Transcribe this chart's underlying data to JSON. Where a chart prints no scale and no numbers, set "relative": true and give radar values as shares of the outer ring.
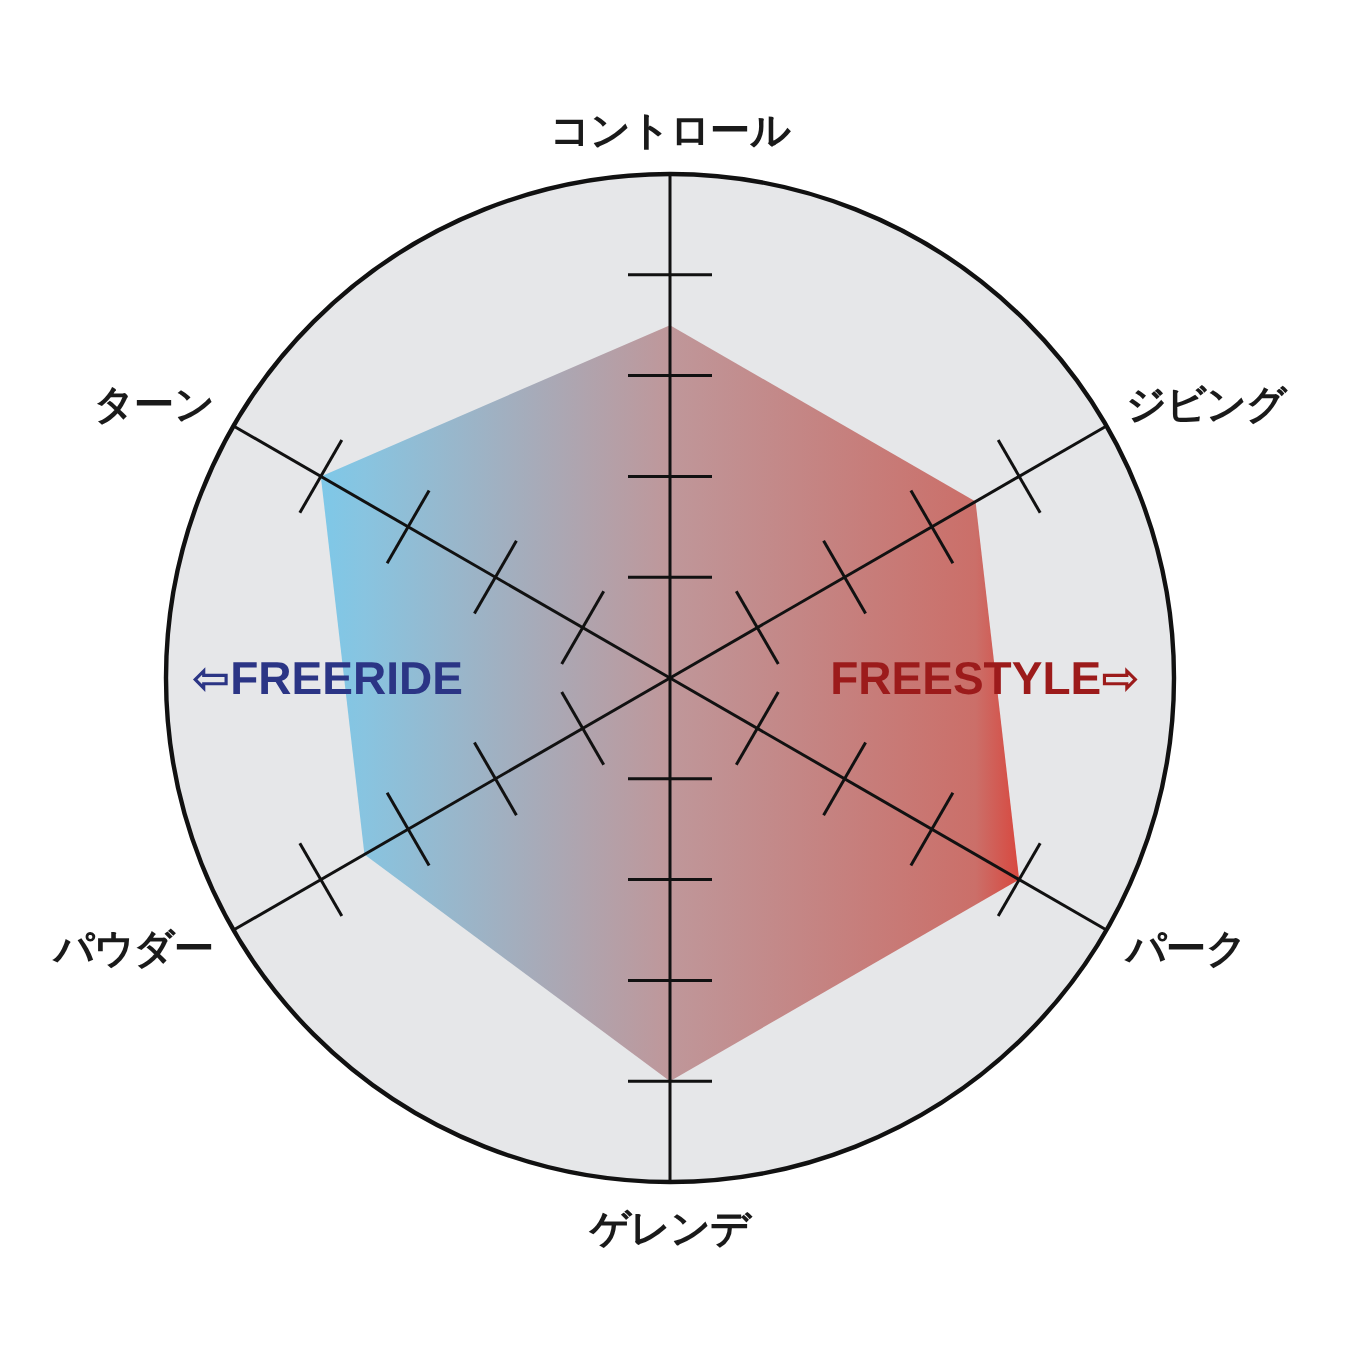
{
  "chart_data": {
    "type": "radar",
    "categories": [
      "コントロール",
      "ジビング",
      "パーク",
      "ゲレンデ",
      "パウダー",
      "ターン"
    ],
    "relative": true,
    "series": [
      {
        "values": [
          0.7,
          0.7,
          0.8,
          0.8,
          0.7,
          0.8
        ],
        "colors": [
          "#bf979a",
          "#cb6f69",
          "#d8483f",
          "#bf979a",
          "#88c4e0",
          "#7ec8e8"
        ]
      }
    ],
    "grid": true,
    "annotations": [
      "⇦FREERIDE",
      "FREESTYLE⇨"
    ]
  }
}
